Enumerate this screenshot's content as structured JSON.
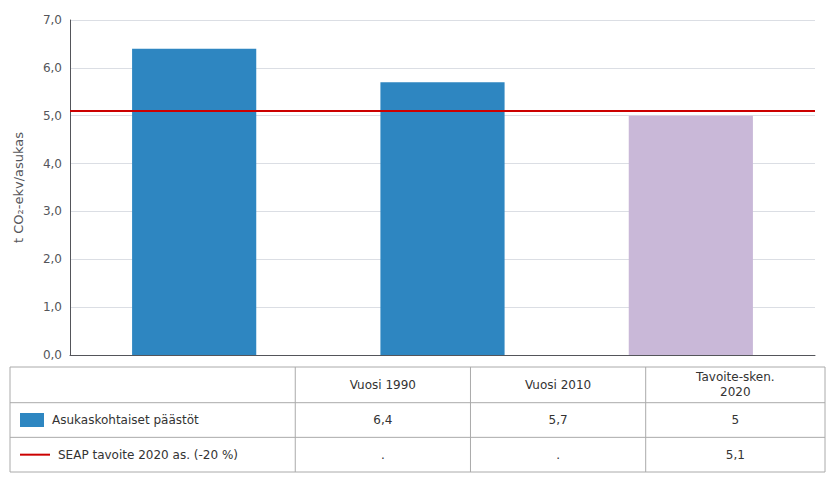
{
  "chart_data": {
    "type": "bar",
    "categories": [
      "Vuosi 1990",
      "Vuosi 2010",
      "Tavoite-sken.\n2020"
    ],
    "ylabel": "t CO₂-ekv/asukas",
    "ylim": [
      0,
      7.0
    ],
    "yticks": [
      {
        "value": 0.0,
        "label": "0,0"
      },
      {
        "value": 1.0,
        "label": "1,0"
      },
      {
        "value": 2.0,
        "label": "2,0"
      },
      {
        "value": 3.0,
        "label": "3,0"
      },
      {
        "value": 4.0,
        "label": "4,0"
      },
      {
        "value": 5.0,
        "label": "5,0"
      },
      {
        "value": 6.0,
        "label": "6,0"
      },
      {
        "value": 7.0,
        "label": "7,0"
      }
    ],
    "grid": true,
    "series": [
      {
        "name": "Asukaskohtaiset päästöt",
        "type": "bar",
        "colors": [
          "#2E86C1",
          "#2E86C1",
          "#C9B8D8"
        ],
        "values": [
          6.4,
          5.7,
          5.0
        ],
        "value_labels": [
          "6,4",
          "5,7",
          "5"
        ]
      },
      {
        "name": "SEAP tavoite 2020 as. (-20 %)",
        "type": "line",
        "color": "#CC0000",
        "values": [
          null,
          null,
          5.1
        ],
        "value_labels": [
          ".",
          ".",
          "5,1"
        ]
      }
    ]
  }
}
